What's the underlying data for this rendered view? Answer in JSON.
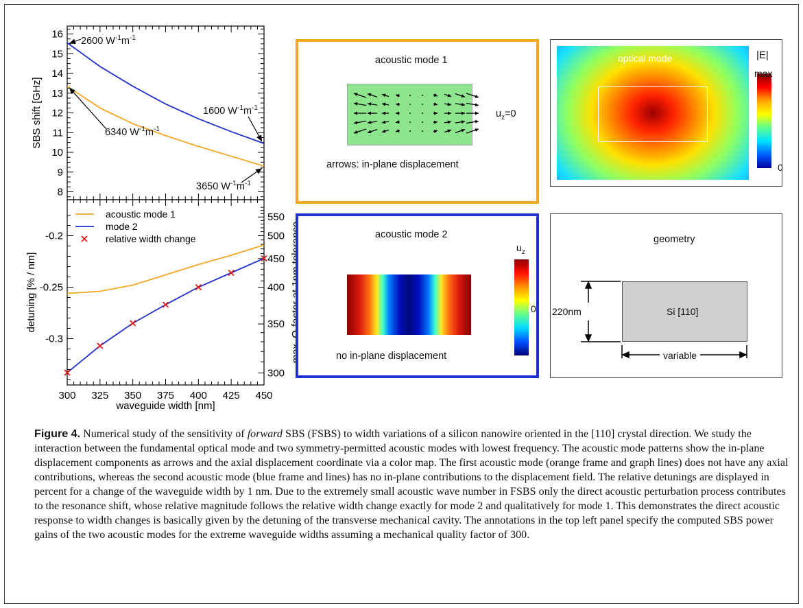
{
  "figure": {
    "label": "Figure 4.",
    "caption_pre": " Numerical study of the sensitivity of ",
    "caption_em": "forward",
    "caption_post": " SBS (FSBS) to width variations of a silicon nanowire oriented in the [110] crystal direction. We study the interaction between the fundamental optical mode and two symmetry-permitted acoustic modes with lowest frequency. The acoustic mode patterns show the in-plane displacement components as arrows and the axial displacement coordinate via a color map. The first acoustic mode (orange frame and graph lines) does not have any axial contributions, whereas the second acoustic mode (blue frame and lines) has no in-plane contributions to the displacement field. The relative detunings are displayed in percent for a change of the waveguide width by 1 nm. Due to the extremely small acoustic wave number in FSBS only the direct acoustic perturbation process contributes to the resonance shift, whose relative magnitude follows the relative width change exactly for mode 2 and qualitatively for mode 1. This demonstrates the direct acoustic response to width changes is basically given by the detuning of the transverse mechanical cavity. The annotations in the top left panel specify the computed SBS power gains of the two acoustic modes for the extreme waveguide widths assuming a mechanical quality factor of 300."
  },
  "colors": {
    "mode1": "#f5a623",
    "mode2": "#1f2fd0",
    "marker": "#e01010",
    "green": "#8ee58e"
  },
  "chart_data": [
    {
      "type": "line",
      "ylabel": "SBS shift [GHz]",
      "xlim": [
        300,
        450
      ],
      "ylim": [
        7.6,
        16.4
      ],
      "yticks": [
        "8",
        "9",
        "10",
        "11",
        "12",
        "13",
        "14",
        "15",
        "16"
      ],
      "series": [
        {
          "color": "#1f2fd0",
          "x": [
            300,
            325,
            350,
            375,
            400,
            425,
            450
          ],
          "y": [
            15.55,
            14.35,
            13.35,
            12.45,
            11.7,
            11.05,
            10.45
          ]
        },
        {
          "color": "#f5a623",
          "x": [
            300,
            325,
            350,
            375,
            400,
            425,
            450
          ],
          "y": [
            13.35,
            12.25,
            11.45,
            10.85,
            10.3,
            9.8,
            9.3
          ]
        }
      ],
      "annotations": [
        "2600 W",
        "6340 W",
        "1600 W",
        "3650 W"
      ],
      "annotation_units": [
        "-1",
        "m",
        "-1"
      ]
    },
    {
      "type": "line",
      "xlabel": "waveguide width [nm]",
      "ylabel": "detuning [% / nm]",
      "ylabel_right": "max. Q-factor at 1nm tolerance",
      "xlim": [
        300,
        450
      ],
      "ylim": [
        -0.345,
        -0.165
      ],
      "xticks": [
        "300",
        "325",
        "350",
        "375",
        "400",
        "425",
        "450"
      ],
      "yticks": [
        "-0.2",
        "-0.25",
        "-0.3"
      ],
      "yticks_right": [
        "550",
        "500",
        "450",
        "400",
        "350",
        "300"
      ],
      "series": [
        {
          "name": "acoustic mode 1",
          "color": "#f5a623",
          "x": [
            300,
            325,
            350,
            375,
            400,
            425,
            450
          ],
          "y": [
            -0.256,
            -0.254,
            -0.248,
            -0.238,
            -0.228,
            -0.219,
            -0.209
          ]
        },
        {
          "name": "mode 2",
          "color": "#1f2fd0",
          "x": [
            300,
            325,
            350,
            375,
            400,
            425,
            450
          ],
          "y": [
            -0.333,
            -0.307,
            -0.285,
            -0.267,
            -0.25,
            -0.236,
            -0.222
          ]
        },
        {
          "name": "relative width change",
          "color": "#e01010",
          "marker": "x",
          "x": [
            300,
            325,
            350,
            375,
            400,
            425,
            450
          ],
          "y": [
            -0.333,
            -0.307,
            -0.285,
            -0.267,
            -0.25,
            -0.236,
            -0.222
          ]
        }
      ]
    }
  ],
  "panels": {
    "mode1": {
      "title": "acoustic mode 1",
      "uz": "u",
      "uz_sub": "z",
      "uz_val": "=0",
      "note": "arrows: in-plane displacement"
    },
    "optical": {
      "title": "optical mode",
      "cb_title": "|E|",
      "cb_max": "max",
      "cb_zero": "0"
    },
    "mode2": {
      "title": "acoustic mode 2",
      "cb_title": "u",
      "cb_title_sub": "z",
      "cb_zero": "0",
      "note": "no in-plane displacement"
    },
    "geometry": {
      "title": "geometry",
      "height": "220nm",
      "material": "Si [110]",
      "width": "variable"
    }
  }
}
